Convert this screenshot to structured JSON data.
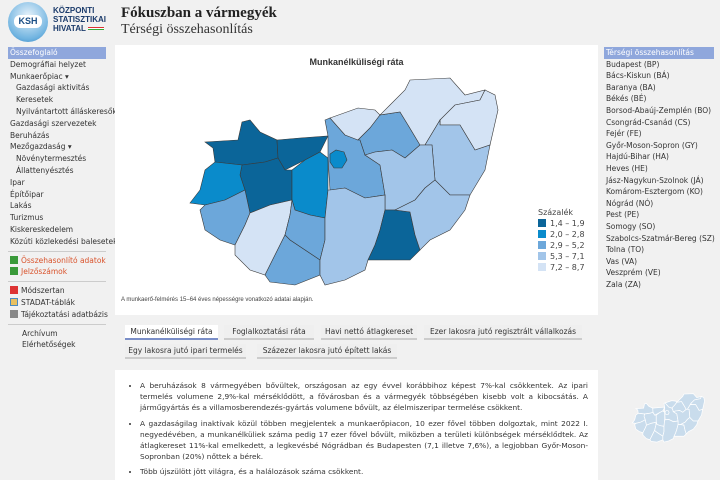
{
  "header": {
    "logo_abbr": "KSH",
    "logo_lines": [
      "KÖZPONTI",
      "STATISZTIKAI",
      "HIVATAL"
    ],
    "title": "Fókuszban a vármegyék",
    "subtitle": "Térségi összehasonlítás"
  },
  "left_nav": {
    "items": [
      {
        "label": "Összefoglaló"
      },
      {
        "label": "Demográfiai helyzet"
      },
      {
        "label": "Munkaerőpiac ▾"
      },
      {
        "label": "Gazdasági aktivitás"
      },
      {
        "label": "Keresetek"
      },
      {
        "label": "Nyilvántartott álláskeresők"
      },
      {
        "label": "Gazdasági szervezetek"
      },
      {
        "label": "Beruházás"
      },
      {
        "label": "Mezőgazdaság ▾"
      },
      {
        "label": "Növénytermesztés"
      },
      {
        "label": "Állattenyésztés"
      },
      {
        "label": "Ipar"
      },
      {
        "label": "Építőipar"
      },
      {
        "label": "Lakás"
      },
      {
        "label": "Turizmus"
      },
      {
        "label": "Kiskereskedelem"
      },
      {
        "label": "Közúti közlekedési balesetek"
      }
    ],
    "links": [
      {
        "label": "Összehasonlító adatok"
      },
      {
        "label": "Jelzőszámok"
      }
    ],
    "resources": [
      {
        "label": "Módszertan"
      },
      {
        "label": "STADAT-táblák"
      },
      {
        "label": "Tájékoztatási adatbázis"
      }
    ],
    "footer": [
      {
        "label": "Archívum"
      },
      {
        "label": "Elérhetőségek"
      }
    ]
  },
  "right_nav": {
    "heading": "Térségi összehasonlítás",
    "items": [
      "Budapest (BP)",
      "Bács-Kiskun (BÁ)",
      "Baranya (BA)",
      "Békés (BÉ)",
      "Borsod-Abaúj-Zemplén (BO)",
      "Csongrád-Csanád (CS)",
      "Fejér (FE)",
      "Győr-Moson-Sopron (GY)",
      "Hajdú-Bihar (HA)",
      "Heves (HE)",
      "Jász-Nagykun-Szolnok (JÁ)",
      "Komárom-Esztergom (KO)",
      "Nógrád (NÓ)",
      "Pest (PE)",
      "Somogy (SO)",
      "Szabolcs-Szatmár-Bereg (SZ)",
      "Tolna (TO)",
      "Vas (VA)",
      "Veszprém (VE)",
      "Zala (ZA)"
    ]
  },
  "map": {
    "title": "Munkanélküliségi ráta",
    "legend_title": "Százalék",
    "classes": [
      {
        "label": "1,4 – 1,9",
        "color": "#0b6599"
      },
      {
        "label": "2,0 – 2,8",
        "color": "#0a8bcb"
      },
      {
        "label": "2,9 – 5,2",
        "color": "#6ca7da"
      },
      {
        "label": "5,3 – 7,1",
        "color": "#a2c5e9"
      },
      {
        "label": "7,2 – 8,7",
        "color": "#d4e3f5"
      }
    ],
    "county_class": {
      "GY": 0,
      "KO": 0,
      "VE": 0,
      "CS": 0,
      "FE": 1,
      "VA": 1,
      "BP": 1,
      "ZA": 2,
      "TO": 2,
      "BA": 2,
      "PE": 2,
      "HE": 2,
      "SO": 4,
      "NÓ": 4,
      "BO": 4,
      "SZ": 4,
      "HA": 3,
      "JÁ": 3,
      "BÁ": 3,
      "BÉ": 3
    },
    "note": "A munkaerő-felmérés 15–64 éves népességre vonatkozó adatai alapján."
  },
  "tabs": [
    "Munkanélküliségi ráta",
    "Foglalkoztatási ráta",
    "Havi nettó átlagkereset",
    "Ezer lakosra jutó regisztrált vállalkozás",
    "Egy lakosra jutó ipari termelés",
    "Százezer lakosra jutó épített lakás"
  ],
  "bullets": [
    "A beruházások 8 vármegyében bővültek, országosan az egy évvel korábbihoz képest 7%-kal csökkentek. Az ipari termelés volumene 2,9%-kal mérséklődött, a fővárosban és a vármegyék többségében kisebb volt a kibocsátás. A járműgyártás és a villamosberendezés-gyártás volumene bővült, az élelmiszeripar termelése csökkent.",
    "A gazdaságilag inaktívak közül többen megjelentek a munkaerőpiacon, 10 ezer fővel többen dolgoztak, mint 2022 I. negyedévében, a munkanélküliek száma pedig 17 ezer fővel bővült, miközben a területi különbségek mérséklődtek. Az átlagkereset 11%-kal emelkedett, a legkevésbé Nógrádban és Budapesten (7,1 illetve 7,6%), a legjobban Győr-Moson-Sopronban (20%) nőttek a bérek.",
    "Több újszülött jött világra, és a halálozások száma csökkent."
  ]
}
